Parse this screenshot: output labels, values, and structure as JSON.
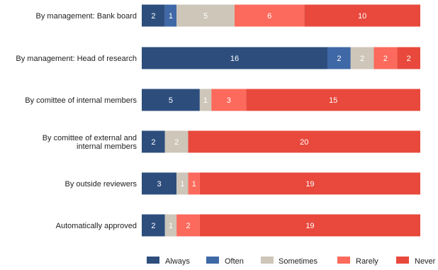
{
  "chart_data": {
    "type": "bar",
    "orientation": "horizontal",
    "stacked": true,
    "categories": [
      [
        "By management: Bank board"
      ],
      [
        "By management: Head of research"
      ],
      [
        "By comittee of internal members"
      ],
      [
        "By comittee of external and",
        "internal members"
      ],
      [
        "By outside reviewers"
      ],
      [
        "Automatically approved"
      ]
    ],
    "series": [
      {
        "name": "Always",
        "color": "#2d4e7d",
        "values": [
          2,
          16,
          5,
          2,
          3,
          2
        ]
      },
      {
        "name": "Often",
        "color": "#3f68a6",
        "values": [
          1,
          2,
          0,
          0,
          0,
          0
        ]
      },
      {
        "name": "Sometimes",
        "color": "#cdc6b9",
        "values": [
          5,
          2,
          1,
          2,
          1,
          1
        ]
      },
      {
        "name": "Rarely",
        "color": "#fb6a5c",
        "values": [
          6,
          2,
          3,
          0,
          1,
          2
        ]
      },
      {
        "name": "Never",
        "color": "#e8493c",
        "values": [
          10,
          2,
          15,
          20,
          19,
          19
        ]
      }
    ],
    "xlim": [
      0,
      24
    ],
    "grid": false,
    "legend": "bottom"
  }
}
